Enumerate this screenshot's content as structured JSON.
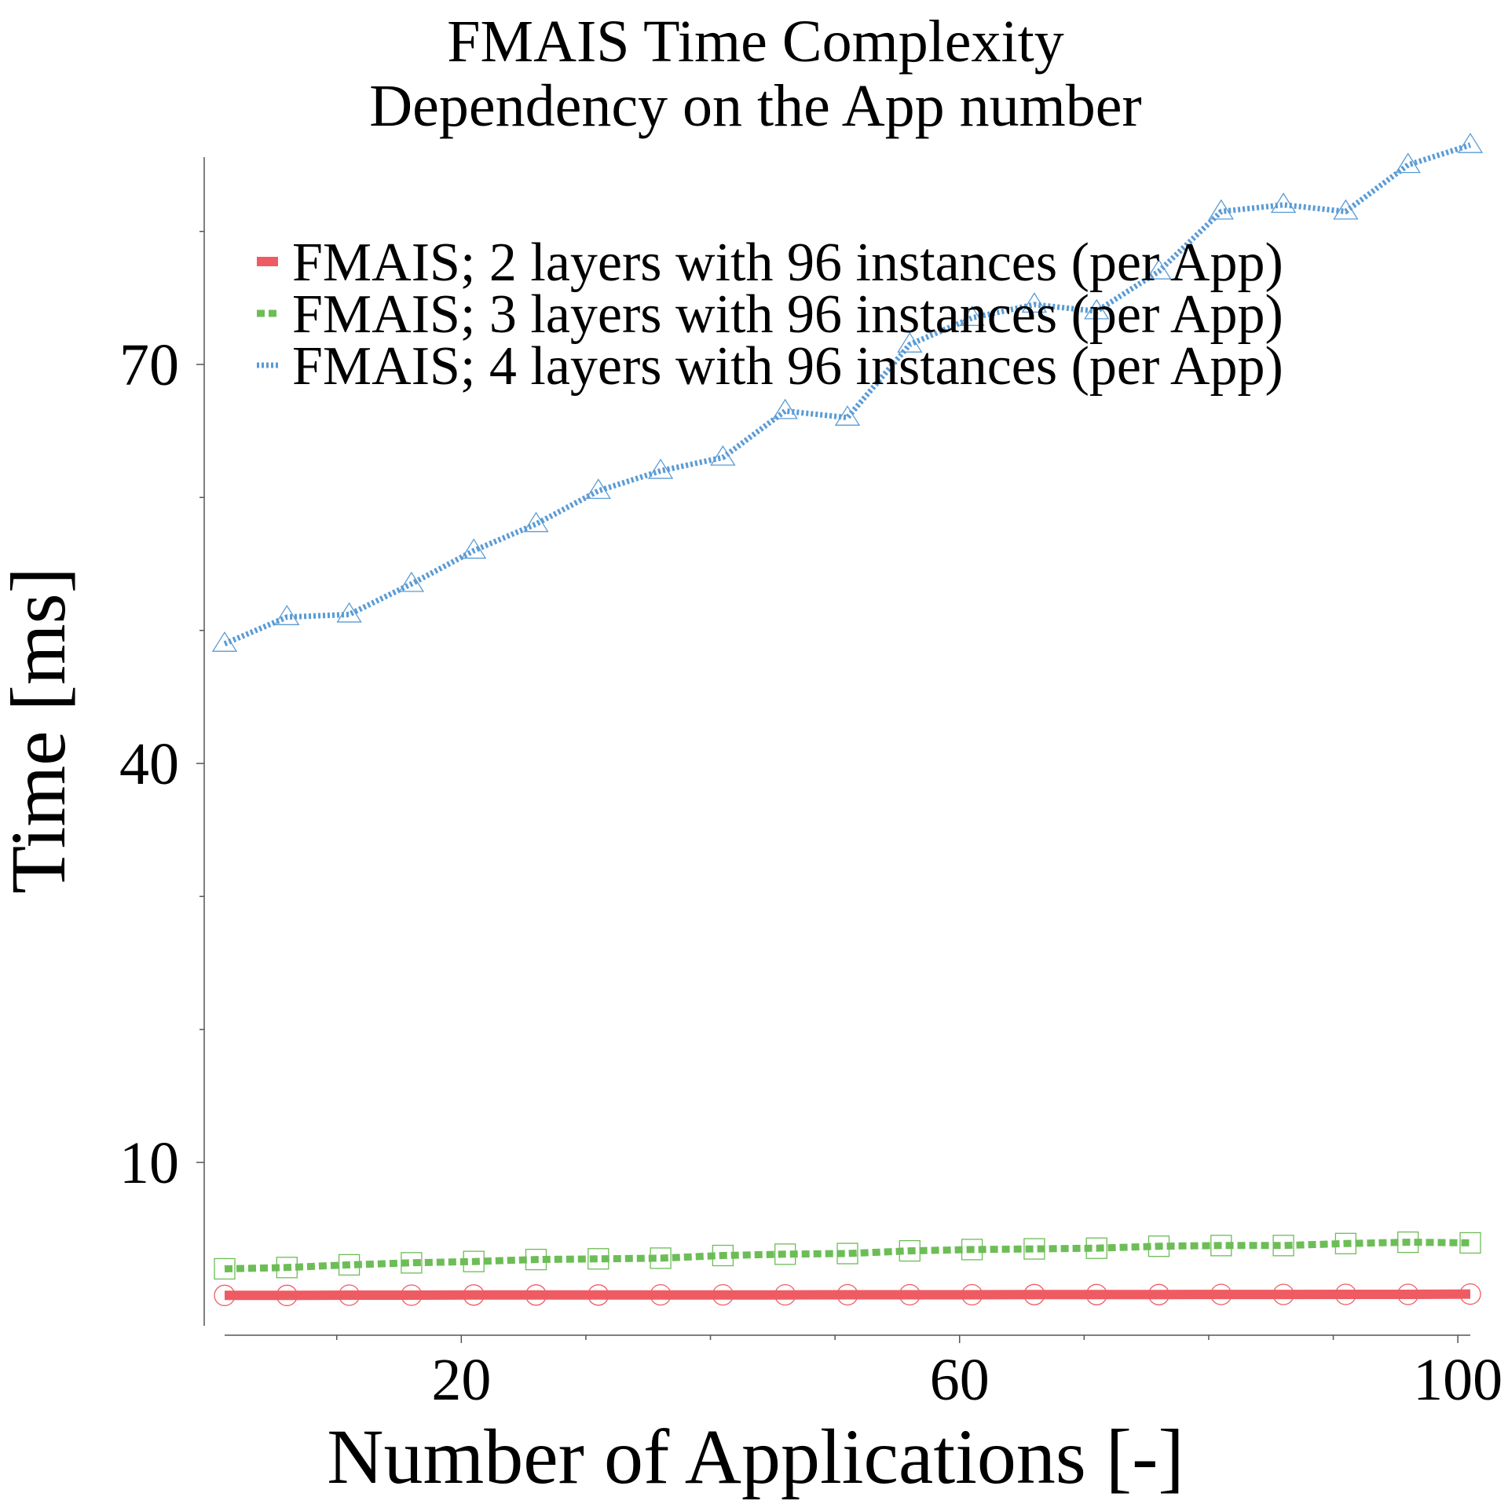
{
  "chart_data": {
    "type": "line",
    "title": [
      "FMAIS Time Complexity",
      "Dependency on the App number"
    ],
    "xlabel": "Number of Applications [-]",
    "ylabel": "Time [ms]",
    "xlim": [
      0,
      102
    ],
    "ylim": [
      0,
      88
    ],
    "xticks": [
      20,
      60,
      100
    ],
    "xticks_minor": [
      10,
      30,
      40,
      50,
      70,
      80,
      90
    ],
    "yticks": [
      10,
      40,
      70
    ],
    "yticks_minor": [
      20,
      30,
      50,
      60,
      80
    ],
    "grid": false,
    "legend_position": "top",
    "x": [
      1,
      6,
      11,
      16,
      21,
      26,
      31,
      36,
      41,
      46,
      51,
      56,
      61,
      66,
      71,
      76,
      81,
      86,
      91,
      96,
      101
    ],
    "series": [
      {
        "name": "FMAIS; 2 layers with 96 instances (per App)",
        "color": "#ef5b63",
        "marker": "circle",
        "line": "solid",
        "values": [
          0.0,
          0.0,
          0.02,
          0.02,
          0.03,
          0.03,
          0.03,
          0.04,
          0.04,
          0.04,
          0.05,
          0.05,
          0.05,
          0.06,
          0.06,
          0.06,
          0.07,
          0.07,
          0.08,
          0.08,
          0.1
        ]
      },
      {
        "name": "FMAIS; 3 layers with 96 instances (per App)",
        "color": "#6dbd57",
        "marker": "square",
        "line": "dashed",
        "values": [
          2.0,
          2.1,
          2.3,
          2.45,
          2.55,
          2.7,
          2.75,
          2.8,
          3.0,
          3.1,
          3.15,
          3.35,
          3.45,
          3.5,
          3.55,
          3.7,
          3.75,
          3.75,
          3.9,
          4.0,
          3.95
        ]
      },
      {
        "name": "FMAIS; 4 layers with 96 instances (per App)",
        "color": "#5a9bd5",
        "marker": "triangle",
        "line": "dotted",
        "values": [
          49.0,
          51.0,
          51.2,
          53.5,
          56.0,
          58.0,
          60.5,
          62.0,
          63.0,
          66.5,
          66.0,
          71.5,
          73.5,
          74.5,
          74.0,
          77.0,
          81.5,
          82.0,
          81.5,
          85.0,
          86.5
        ]
      }
    ]
  }
}
